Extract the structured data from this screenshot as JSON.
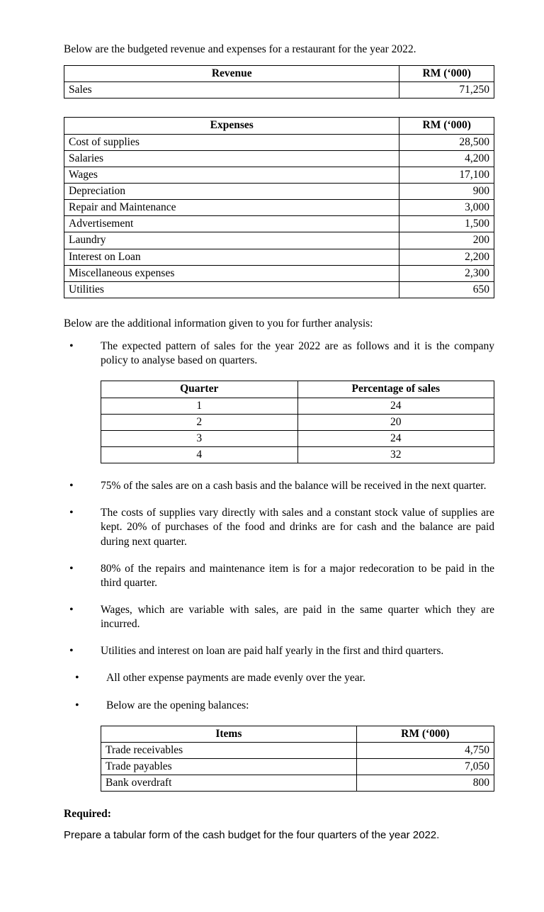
{
  "intro": "Below are the budgeted revenue and expenses for a restaurant for the year 2022.",
  "revenue": {
    "header_left": "Revenue",
    "header_right": "RM (‘000)",
    "rows": [
      {
        "label": "Sales",
        "value": "71,250"
      }
    ]
  },
  "expenses": {
    "header_left": "Expenses",
    "header_right": "RM (‘000)",
    "rows": [
      {
        "label": "Cost of supplies",
        "value": "28,500"
      },
      {
        "label": "Salaries",
        "value": "4,200"
      },
      {
        "label": "Wages",
        "value": "17,100"
      },
      {
        "label": "Depreciation",
        "value": "900"
      },
      {
        "label": "Repair and Maintenance",
        "value": "3,000"
      },
      {
        "label": "Advertisement",
        "value": "1,500"
      },
      {
        "label": "Laundry",
        "value": "200"
      },
      {
        "label": "Interest on Loan",
        "value": "2,200"
      },
      {
        "label": "Miscellaneous expenses",
        "value": "2,300"
      },
      {
        "label": "Utilities",
        "value": "650"
      }
    ]
  },
  "additional_intro": "Below are the additional information given to you for further analysis:",
  "bullet1": "The expected pattern of sales for the year 2022 are as follows and it is the company policy to analyse based on quarters.",
  "quarters": {
    "header_left": "Quarter",
    "header_right": "Percentage of sales",
    "rows": [
      {
        "q": "1",
        "pct": "24"
      },
      {
        "q": "2",
        "pct": "20"
      },
      {
        "q": "3",
        "pct": "24"
      },
      {
        "q": "4",
        "pct": "32"
      }
    ]
  },
  "bullets_rest": [
    "75% of the sales are on a cash basis and the balance will be received in the next quarter.",
    "The costs of supplies vary directly with sales and a constant stock value of supplies are kept. 20% of purchases of the food and drinks are for cash and the balance are paid during next quarter.",
    "80% of the repairs and maintenance item is for a major redecoration to be paid in the third quarter.",
    "Wages, which are variable with sales, are paid in the same quarter which they are incurred.",
    "Utilities and interest on loan are paid half yearly in the first and third quarters."
  ],
  "bullets_tail": [
    "All other expense payments are made evenly over the year.",
    "Below are the opening balances:"
  ],
  "opening": {
    "header_left": "Items",
    "header_right": "RM (‘000)",
    "rows": [
      {
        "label": "Trade receivables",
        "value": "4,750"
      },
      {
        "label": "Trade payables",
        "value": "7,050"
      },
      {
        "label": "Bank overdraft",
        "value": "800"
      }
    ]
  },
  "required_label": "Required:",
  "required_text": "Prepare a tabular form of the cash budget for the four quarters of the year 2022.",
  "style": {
    "col1_width_pct": 78,
    "quarters_col1_pct": 50
  }
}
